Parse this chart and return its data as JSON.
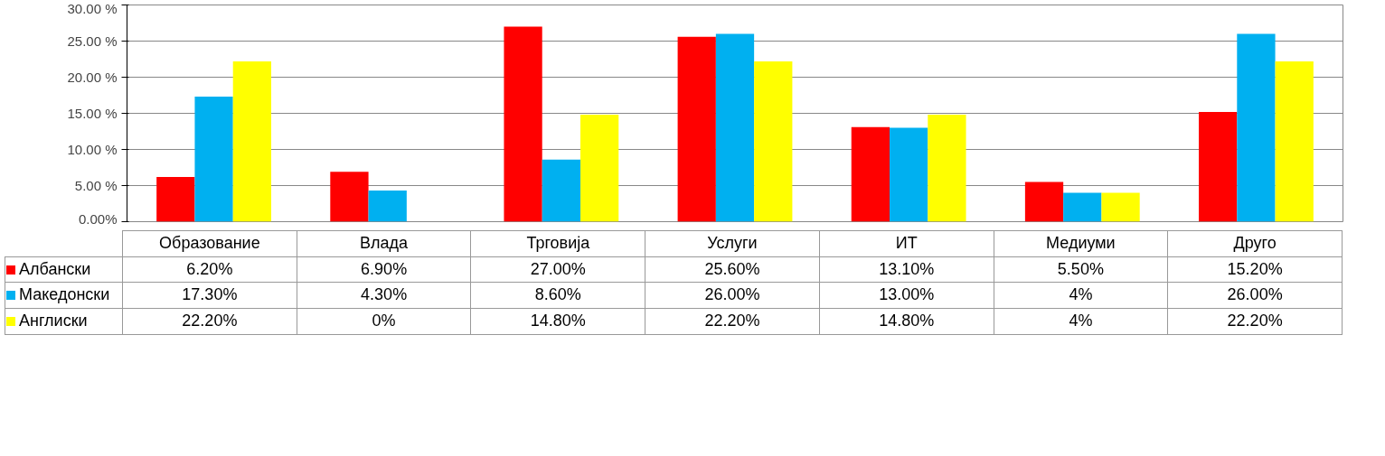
{
  "chart_data": {
    "type": "bar",
    "categories": [
      "Образование",
      "Влада",
      "Трговија",
      "Услуги",
      "ИТ",
      "Медиуми",
      "Друго"
    ],
    "series": [
      {
        "name": "Албански",
        "color": "#ff0000",
        "values": [
          6.2,
          6.9,
          27.0,
          25.6,
          13.1,
          5.5,
          15.2
        ],
        "value_labels": [
          "6.20%",
          "6.90%",
          "27.00%",
          "25.60%",
          "13.10%",
          "5.50%",
          "15.20%"
        ]
      },
      {
        "name": "Македонски",
        "color": "#00b0f0",
        "values": [
          17.3,
          4.3,
          8.6,
          26.0,
          13.0,
          4,
          26.0
        ],
        "value_labels": [
          "17.30%",
          "4.30%",
          "8.60%",
          "26.00%",
          "13.00%",
          "4%",
          "26.00%"
        ]
      },
      {
        "name": "Англиски",
        "color": "#ffff00",
        "values": [
          22.2,
          0,
          14.8,
          22.2,
          14.8,
          4,
          22.2
        ],
        "value_labels": [
          "22.20%",
          "0%",
          "14.80%",
          "22.20%",
          "14.80%",
          "4%",
          "22.20%"
        ]
      }
    ],
    "ylim": [
      0,
      30
    ],
    "yticks": [
      {
        "value": 0,
        "label": "0.00%"
      },
      {
        "value": 5,
        "label": "5.00 %"
      },
      {
        "value": 10,
        "label": "10.00 %"
      },
      {
        "value": 15,
        "label": "15.00 %"
      },
      {
        "value": 20,
        "label": "20.00 %"
      },
      {
        "value": 25,
        "label": "25.00 %"
      },
      {
        "value": 30,
        "label": "30.00 %"
      }
    ],
    "grid": "y",
    "legend": "bottom"
  }
}
